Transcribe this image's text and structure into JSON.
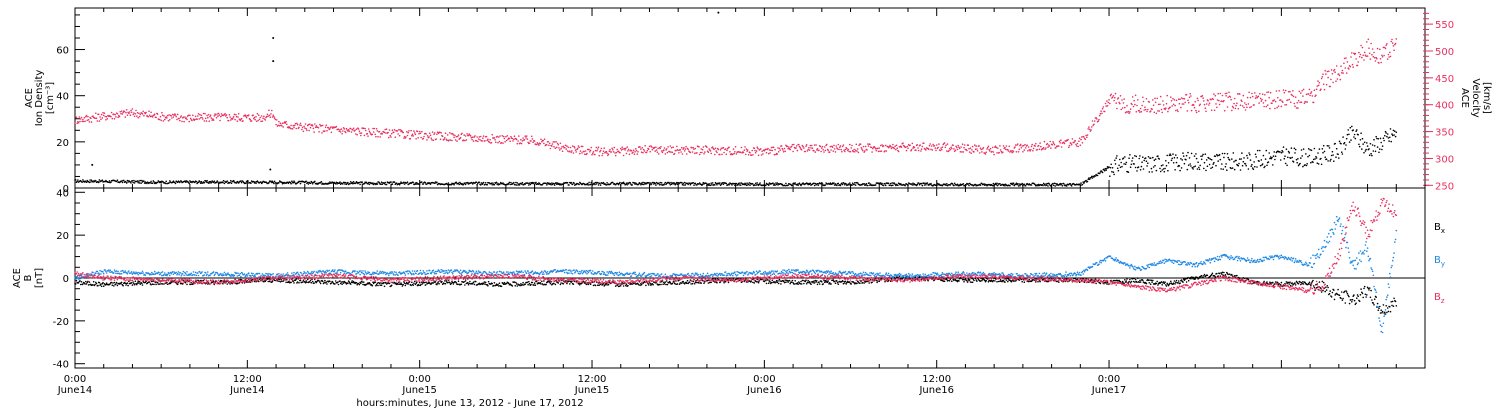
{
  "colors": {
    "black": "#000000",
    "pink": "#e8305f",
    "blue": "#1e88e5"
  },
  "chart_data": [
    {
      "type": "scatter",
      "panel": "top",
      "ylabel_lines": [
        "ACE",
        "Ion Density",
        "[cm⁻³]"
      ],
      "y2label_lines": [
        "ACE",
        "Velocity",
        "[km/s]"
      ],
      "ylim": [
        0,
        78
      ],
      "y2lim": [
        245,
        580
      ],
      "yticks": [
        "0",
        "20",
        "40",
        "60"
      ],
      "y2ticks": [
        "250",
        "300",
        "350",
        "400",
        "450",
        "500",
        "550"
      ],
      "grid": false,
      "series": [
        {
          "color_key": "black",
          "axis": "left",
          "x": [
            0,
            1,
            3,
            6,
            10,
            14,
            18,
            22,
            26,
            30,
            34,
            38,
            42,
            46,
            50,
            54,
            58,
            62,
            66,
            70,
            72,
            73,
            74,
            76,
            78,
            80,
            82,
            84,
            86,
            88,
            89,
            90,
            91,
            92
          ],
          "y": [
            3,
            3,
            2.8,
            2.5,
            2.6,
            2.5,
            2.2,
            2.0,
            2.0,
            1.9,
            1.8,
            1.9,
            1.8,
            1.7,
            1.6,
            1.7,
            1.6,
            1.5,
            1.5,
            1.4,
            9,
            11,
            10,
            11,
            12,
            11,
            12,
            14,
            13,
            16,
            24,
            17,
            20,
            24
          ],
          "outliers": [
            [
              13.8,
              65
            ],
            [
              13.8,
              55
            ],
            [
              44.8,
              76
            ],
            [
              1.2,
              10
            ],
            [
              13.6,
              8
            ]
          ]
        },
        {
          "color_key": "pink",
          "axis": "right",
          "x": [
            0,
            1,
            3,
            4,
            6,
            8,
            10,
            13,
            13.8,
            14,
            16,
            20,
            24,
            28,
            32,
            34,
            36,
            38,
            40,
            44,
            48,
            50,
            52,
            56,
            60,
            64,
            66,
            68,
            70,
            72,
            74,
            78,
            82,
            84,
            86,
            87,
            88,
            90,
            91,
            92
          ],
          "y": [
            372,
            375,
            382,
            385,
            378,
            375,
            377,
            376,
            385,
            365,
            358,
            350,
            343,
            338,
            333,
            320,
            313,
            313,
            316,
            315,
            313,
            318,
            318,
            320,
            322,
            315,
            320,
            325,
            330,
            405,
            400,
            403,
            408,
            410,
            412,
            445,
            460,
            505,
            490,
            515
          ]
        }
      ]
    },
    {
      "type": "scatter",
      "panel": "bottom",
      "ylabel_lines": [
        "ACE",
        "B",
        "[nT]"
      ],
      "ylim": [
        -42,
        42
      ],
      "yticks": [
        "-40",
        "-20",
        "0",
        "20",
        "40"
      ],
      "xlabel": "hours:minutes, June 13, 2012 - June 17, 2012",
      "x_tick_labels": [
        {
          "time": "0:00",
          "date": "June14"
        },
        {
          "time": "12:00",
          "date": "June14"
        },
        {
          "time": "0:00",
          "date": "June15"
        },
        {
          "time": "12:00",
          "date": "June15"
        },
        {
          "time": "0:00",
          "date": "June16"
        },
        {
          "time": "12:00",
          "date": "June16"
        },
        {
          "time": "0:00",
          "date": "June17"
        }
      ],
      "xlim_hours": [
        0,
        94
      ],
      "grid": false,
      "zero_line": true,
      "series": [
        {
          "name": "Bx",
          "color_key": "black",
          "x": [
            0,
            2,
            6,
            10,
            14,
            18,
            22,
            26,
            30,
            34,
            38,
            42,
            46,
            50,
            54,
            58,
            62,
            66,
            70,
            72,
            74,
            76,
            78,
            80,
            82,
            84,
            86,
            87,
            88,
            89,
            90,
            91,
            92
          ],
          "y": [
            -2,
            -3,
            -2,
            -2,
            -1,
            -2,
            -3,
            -2,
            -3,
            -2,
            -3,
            -2,
            -1,
            -2,
            -2,
            0,
            -1,
            -1,
            -1,
            -2,
            -1,
            -3,
            0,
            2,
            -2,
            -3,
            -2,
            -5,
            -8,
            -10,
            -6,
            -15,
            -12
          ]
        },
        {
          "name": "By",
          "color_key": "blue",
          "x": [
            0,
            2,
            6,
            10,
            14,
            18,
            22,
            26,
            30,
            34,
            38,
            42,
            46,
            50,
            54,
            58,
            62,
            66,
            70,
            72,
            74,
            76,
            78,
            80,
            82,
            84,
            86,
            87,
            88,
            89,
            90,
            91,
            92
          ],
          "y": [
            0,
            3,
            2,
            2,
            1,
            3,
            2,
            3,
            2,
            3,
            2,
            1,
            2,
            3,
            2,
            1,
            2,
            1,
            2,
            10,
            4,
            8,
            6,
            10,
            8,
            10,
            6,
            15,
            28,
            5,
            15,
            -25,
            20
          ]
        },
        {
          "name": "Bz",
          "color_key": "pink",
          "x": [
            0,
            2,
            6,
            10,
            14,
            18,
            22,
            26,
            30,
            34,
            38,
            42,
            46,
            50,
            54,
            58,
            62,
            66,
            70,
            72,
            74,
            76,
            78,
            80,
            82,
            84,
            86,
            87,
            88,
            89,
            90,
            91,
            92
          ],
          "y": [
            2,
            0,
            -1,
            -2,
            0,
            1,
            -1,
            0,
            1,
            -1,
            -2,
            0,
            -1,
            1,
            0,
            -1,
            1,
            0,
            -1,
            -2,
            -4,
            -6,
            -3,
            0,
            -2,
            -4,
            -6,
            -2,
            10,
            35,
            20,
            35,
            30
          ]
        }
      ]
    }
  ]
}
